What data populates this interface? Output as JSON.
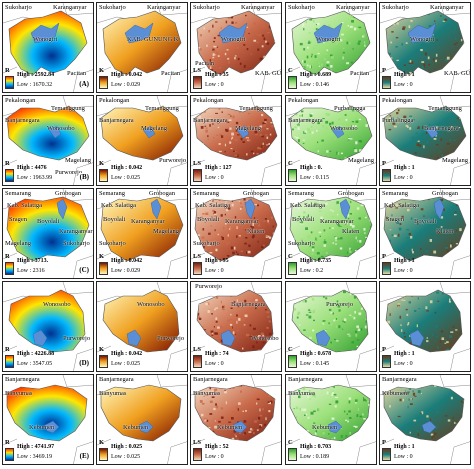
{
  "colors": {
    "R": [
      "#00308f",
      "#00b7ff",
      "#ffe600",
      "#ff3b00"
    ],
    "K": [
      "#fff8c0",
      "#f0a020",
      "#7a1000"
    ],
    "LS": [
      "#f4d9c0",
      "#c86a4a",
      "#7a1f12"
    ],
    "C": [
      "#e8f7d8",
      "#9be07a",
      "#2f9e2f"
    ],
    "P": [
      "#e6d9a0",
      "#1a7d7a",
      "#6b3a1a"
    ],
    "water": "#5a8fd6",
    "outline": "#555555"
  },
  "panels": [
    {
      "id": "A-R",
      "row": 0,
      "col": 0,
      "type": "R",
      "letter": "R",
      "high": "High : 2592.84",
      "low": "Low : 1670.32",
      "tag": "(A)",
      "places": [
        "Sukoharjo",
        "Karanganyar",
        "Wonogiri",
        "Pacitan"
      ]
    },
    {
      "id": "A-K",
      "row": 0,
      "col": 1,
      "type": "K",
      "letter": "K",
      "high": "High : 0.042",
      "low": "Low : 0.029",
      "places": [
        "Sukoharjo",
        "Karanganyar",
        "KAB. GUNUNG K",
        "Pacitan"
      ]
    },
    {
      "id": "A-LS",
      "row": 0,
      "col": 2,
      "type": "LS",
      "letter": "LS",
      "high": "High : 35",
      "low": "Low : 0",
      "places": [
        "Sukoharjo",
        "Karanganyar",
        "Wonogiri",
        "KAB. GUNUNG K",
        "Pacitan"
      ]
    },
    {
      "id": "A-C",
      "row": 0,
      "col": 3,
      "type": "C",
      "letter": "C",
      "high": "High : 0.689",
      "low": "Low : 0.146",
      "places": [
        "Sukoharjo",
        "Karanganyar",
        "Wonogiri",
        "Pacitan"
      ]
    },
    {
      "id": "A-P",
      "row": 0,
      "col": 4,
      "type": "P",
      "letter": "P",
      "high": "High : 1",
      "low": "Low : 0",
      "places": [
        "Sukoharjo",
        "Karanganyar",
        "Wonogiri",
        "KAB. GUNUNG K"
      ]
    },
    {
      "id": "B-R",
      "row": 1,
      "col": 0,
      "type": "R",
      "letter": "R",
      "high": "High : 4476",
      "low": "Low : 1963.99",
      "tag": "(B)",
      "places": [
        "Pekalongan",
        "Temanggung",
        "Banjarnegara",
        "Wonosobo",
        "Magelang",
        "Purworejo"
      ]
    },
    {
      "id": "B-K",
      "row": 1,
      "col": 1,
      "type": "K",
      "letter": "K",
      "high": "High : 0.042",
      "low": "Low : 0.025",
      "places": [
        "Pekalongan",
        "Temanggung",
        "Banjarnegara",
        "Magelang",
        "Purworejo"
      ]
    },
    {
      "id": "B-LS",
      "row": 1,
      "col": 2,
      "type": "LS",
      "letter": "LS",
      "high": "High : 127",
      "low": "Low : 0",
      "places": [
        "Pekalongan",
        "Temanggung",
        "Banjarnegara",
        "Magelang"
      ]
    },
    {
      "id": "B-C",
      "row": 1,
      "col": 3,
      "type": "C",
      "letter": "C",
      "high": "High : 0.",
      "low": "Low : 0.115",
      "places": [
        "Pekalongan",
        "Purbalingga",
        "Banjarnegara",
        "Wonosobo",
        "Magelang"
      ]
    },
    {
      "id": "B-P",
      "row": 1,
      "col": 4,
      "type": "P",
      "letter": "P",
      "high": "High : 1",
      "low": "Low : 0",
      "places": [
        "Pekalongan",
        "Temanggung",
        "Purbalingga",
        "Banjarnegara",
        "Magelang"
      ]
    },
    {
      "id": "C-R",
      "row": 2,
      "col": 0,
      "type": "R",
      "letter": "R",
      "high": "High : 3713.",
      "low": "Low : 2316",
      "tag": "(C)",
      "places": [
        "Semarang",
        "Grobogan",
        "Kab. Salatiga",
        "Sragen",
        "Boyolali",
        "Karanganyar",
        "Magelang",
        "Sukoharjo"
      ]
    },
    {
      "id": "C-K",
      "row": 2,
      "col": 1,
      "type": "K",
      "letter": "K",
      "high": "High : 0.042",
      "low": "Low : 0.029",
      "places": [
        "Semarang",
        "Grobogan",
        "Kab. Salatiga",
        "Boyolali",
        "Karanganyar",
        "Magelang",
        "Sukoharjo"
      ]
    },
    {
      "id": "C-LS",
      "row": 2,
      "col": 2,
      "type": "LS",
      "letter": "LS",
      "high": "High : 95",
      "low": "Low : 0",
      "places": [
        "Semarang",
        "Grobogan",
        "Kab. Salatiga",
        "Boyolali",
        "Karanganyar",
        "Klaten",
        "Sukoharjo"
      ]
    },
    {
      "id": "C-C",
      "row": 2,
      "col": 3,
      "type": "C",
      "letter": "C",
      "high": "High : 0.735",
      "low": "Low : 0.2",
      "places": [
        "Semarang",
        "Grobogan",
        "Kab. Salatiga",
        "Boyolali",
        "Karanganyar",
        "Klaten",
        "Sukoharjo"
      ]
    },
    {
      "id": "C-P",
      "row": 2,
      "col": 4,
      "type": "P",
      "letter": "P",
      "high": "High : 1",
      "low": "Low : 0",
      "places": [
        "Semarang",
        "Grobogan",
        "Kab. Salatiga",
        "Sragen",
        "Boyolali",
        "Klaten"
      ]
    },
    {
      "id": "D-R",
      "row": 3,
      "col": 0,
      "type": "R",
      "letter": "R",
      "high": "High : 4226.88",
      "low": "Low : 3547.05",
      "tag": "(D)",
      "places": [
        "Wonosobo",
        "Purworejo"
      ]
    },
    {
      "id": "D-K",
      "row": 3,
      "col": 1,
      "type": "K",
      "letter": "K",
      "high": "High : 0.042",
      "low": "Low : 0.025",
      "places": [
        "Wonosobo",
        "Purworejo"
      ]
    },
    {
      "id": "D-LS",
      "row": 3,
      "col": 2,
      "type": "LS",
      "letter": "LS",
      "high": "High : 74",
      "low": "Low : 0",
      "places": [
        "Banjarnegara",
        "Wonosobo",
        "Purworejo"
      ]
    },
    {
      "id": "D-C",
      "row": 3,
      "col": 3,
      "type": "C",
      "letter": "C",
      "high": "High : 0.678",
      "low": "Low : 0.145",
      "places": [
        "Purworejo"
      ]
    },
    {
      "id": "D-P",
      "row": 3,
      "col": 4,
      "type": "P",
      "letter": "P",
      "high": "High : 1",
      "low": "Low : 0",
      "places": []
    },
    {
      "id": "E-R",
      "row": 4,
      "col": 0,
      "type": "R",
      "letter": "R",
      "high": "High : 4741.97",
      "low": "Low : 3469.19",
      "tag": "(E)",
      "places": [
        "Banjarnegara",
        "Banyumas",
        "Kebumen"
      ]
    },
    {
      "id": "E-K",
      "row": 4,
      "col": 1,
      "type": "K",
      "letter": "K",
      "high": "High : 0.025",
      "low": "Low : 0.025",
      "places": [
        "Banjarnegara",
        "Banyumas",
        "Kebumen"
      ]
    },
    {
      "id": "E-LS",
      "row": 4,
      "col": 2,
      "type": "LS",
      "letter": "LS",
      "high": "High : 52",
      "low": "Low : 0",
      "places": [
        "Banjarnegara",
        "Banyumas",
        "Kebumen"
      ]
    },
    {
      "id": "E-C",
      "row": 4,
      "col": 3,
      "type": "C",
      "letter": "C",
      "high": "High : 0.703",
      "low": "Low : 0.189",
      "places": [
        "Banjarnegara",
        "Banyumas",
        "Kebumen"
      ]
    },
    {
      "id": "E-P",
      "row": 4,
      "col": 4,
      "type": "P",
      "letter": "P",
      "high": "High : 1",
      "low": "Low : 0",
      "places": [
        "Banjarnegara",
        "Kebumen"
      ]
    }
  ]
}
